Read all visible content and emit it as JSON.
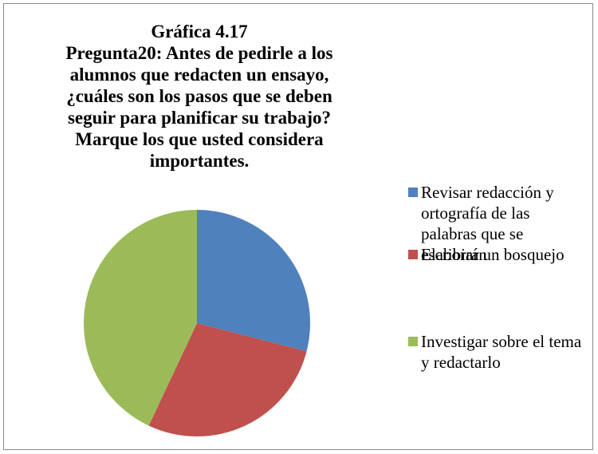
{
  "chart_data": {
    "type": "pie",
    "title": [
      "Gráfica 4.17",
      "Pregunta20: Antes de pedirle a los alumnos que redacten un ensayo, ¿cuáles son los pasos que se deben seguir para planificar su trabajo? Marque los que usted considera importantes."
    ],
    "categories": [
      "Revisar redacción y ortografía de las palabras que se escribirán",
      "Elaborar un bosquejo",
      "Investigar sobre el tema y redactarlo"
    ],
    "values": [
      29,
      28,
      43
    ],
    "colors": [
      "#4f81bd",
      "#c0504d",
      "#9bbb59"
    ]
  }
}
